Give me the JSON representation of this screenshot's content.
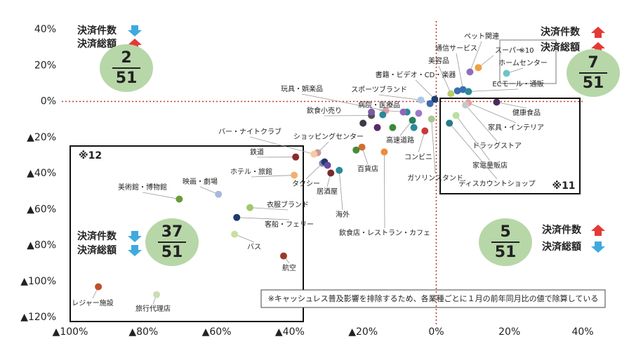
{
  "chart_data": {
    "type": "scatter",
    "xlim": [
      -100,
      40
    ],
    "ylim": [
      -120,
      40
    ],
    "xticks": [
      {
        "value": -100,
        "label": "▲100%"
      },
      {
        "value": -80,
        "label": "▲80%"
      },
      {
        "value": -60,
        "label": "▲60%"
      },
      {
        "value": -40,
        "label": "▲40%"
      },
      {
        "value": -20,
        "label": "▲20%"
      },
      {
        "value": 0,
        "label": "0%"
      },
      {
        "value": 20,
        "label": "20%"
      },
      {
        "value": 40,
        "label": "40%"
      }
    ],
    "yticks": [
      {
        "value": 40,
        "label": "40%"
      },
      {
        "value": 20,
        "label": "20%"
      },
      {
        "value": 0,
        "label": "0%"
      },
      {
        "value": -20,
        "label": "▲20%"
      },
      {
        "value": -40,
        "label": "▲40%"
      },
      {
        "value": -60,
        "label": "▲60%"
      },
      {
        "value": -80,
        "label": "▲80%"
      },
      {
        "value": -100,
        "label": "▲100%"
      },
      {
        "value": -120,
        "label": "▲120%"
      }
    ],
    "zero_line_color": "#c0392b",
    "point_labels": [
      "ペット関連",
      "スーパー",
      "ホームセンター",
      "通信サービス",
      "ECモール・通販",
      "美容品",
      "書籍・ビデオ・CD・楽器",
      "スポーツブランド",
      "玩具・娯楽品",
      "飲食小売り",
      "病院・医療品",
      "健康食品",
      "家具・インテリア",
      "ドラッグストア",
      "家電量販店",
      "ディスカウントショップ",
      "ガソリンスタンド",
      "コンビニ",
      "高速道路",
      "百貨店",
      "飲食店・レストラン・カフェ",
      "海外",
      "居酒屋",
      "タクシー",
      "ショッピングセンター",
      "バー・ナイトクラブ",
      "鉄道",
      "ホテル・旅館",
      "映画・劇場",
      "美術館・博物館",
      "衣服ブランド",
      "客船・フェリー",
      "バス",
      "航空",
      "レジャー施設",
      "旅行代理店",
      null,
      null,
      null,
      null,
      null,
      null,
      null,
      null,
      null,
      null,
      null,
      null,
      null
    ],
    "x": [
      9.2,
      11.5,
      19.2,
      7.3,
      8.8,
      4,
      -0.4,
      -4.2,
      -13.8,
      -17.7,
      -8,
      16.5,
      8.8,
      8,
      5.4,
      3.6,
      -1.3,
      -3.1,
      -6.5,
      -20.3,
      -14.2,
      -26.5,
      -28.8,
      -31.1,
      -32.4,
      -33.4,
      -38.4,
      -38.8,
      -59.5,
      -70.2,
      -50.9,
      -54.5,
      -55.1,
      -41.7,
      -92.3,
      -76.4,
      -17.7,
      -16.1,
      -11.9,
      -9,
      -6.1,
      -4.8,
      -1.7,
      -21.9,
      -30.5,
      -29.7,
      -20,
      -14.6,
      5.8
    ],
    "values": [
      16.4,
      18.8,
      15.6,
      6.6,
      5.5,
      4.3,
      1.2,
      0.8,
      -5.1,
      -7.8,
      -5.9,
      -0.4,
      -0.8,
      -2,
      -7.8,
      -12.1,
      -9.8,
      -16.4,
      -10.5,
      -25.4,
      -28.1,
      -38.3,
      -39.8,
      -34.4,
      -28.5,
      -29.3,
      -30.9,
      -41,
      -51.6,
      -54.3,
      -59,
      -64.5,
      -73.8,
      -85.9,
      -103,
      -107.4,
      -5.9,
      -14.5,
      -14.5,
      -5.9,
      -14.5,
      -6.6,
      -1.2,
      -27,
      -33.6,
      -35.5,
      -12.1,
      -7.4,
      5.9
    ],
    "colors": [
      "#8e6fb5",
      "#f0a040",
      "#6cc5c8",
      "#3a6fb0",
      "#2a8a9a",
      "#b6cf6a",
      "#1f3f6e",
      "#a8c8e8",
      "#e8a0a8",
      "#505050",
      "#2a8a9a",
      "#4a2a5a",
      "#e8a0a0",
      "#c8c8c8",
      "#b8e0a0",
      "#2a7a8a",
      "#a8c890",
      "#c83a3a",
      "#2a8060",
      "#d07030",
      "#f08a40",
      "#2a8a9a",
      "#7a2a2a",
      "#8a8ab8",
      "#c89898",
      "#f8c8a0",
      "#8a2a2a",
      "#f0b070",
      "#a8b8e0",
      "#6a9a3a",
      "#a0c870",
      "#1f3a6e",
      "#c8e0a0",
      "#9a3a2a",
      "#c0502a",
      "#c8e0b0",
      "#7b5aa6",
      "#5a2a6a",
      "#3a8a3a",
      "#8a6ab8",
      "#2a8a9a",
      "#9a7ac8",
      "#3a6ab0",
      "#4a8a3a",
      "#1f3a6e",
      "#6a4a9a",
      "#3a3a4a",
      "#2a8a9a",
      "#3a6fb0"
    ],
    "regions": [
      "※12",
      "※11",
      "※10"
    ],
    "quadrants": [
      {
        "count_label": "決済件数",
        "count_arrow": "down",
        "amount_label": "決済総額",
        "amount_arrow": "up",
        "numerator": "2",
        "denominator": "51"
      },
      {
        "count_label": "決済件数",
        "count_arrow": "up",
        "amount_label": "決済総額",
        "amount_arrow": "up",
        "numerator": "7",
        "denominator": "51"
      },
      {
        "count_label": "決済件数",
        "count_arrow": "down",
        "amount_label": "決済総額",
        "amount_arrow": "down",
        "numerator": "37",
        "denominator": "51"
      },
      {
        "count_label": "決済件数",
        "count_arrow": "up",
        "amount_label": "決済総額",
        "amount_arrow": "down",
        "numerator": "5",
        "denominator": "51"
      }
    ],
    "note": "※キャッシュレス普及影響を排除するため、各業種ごとに１月の前年同月比の値で除算している"
  }
}
